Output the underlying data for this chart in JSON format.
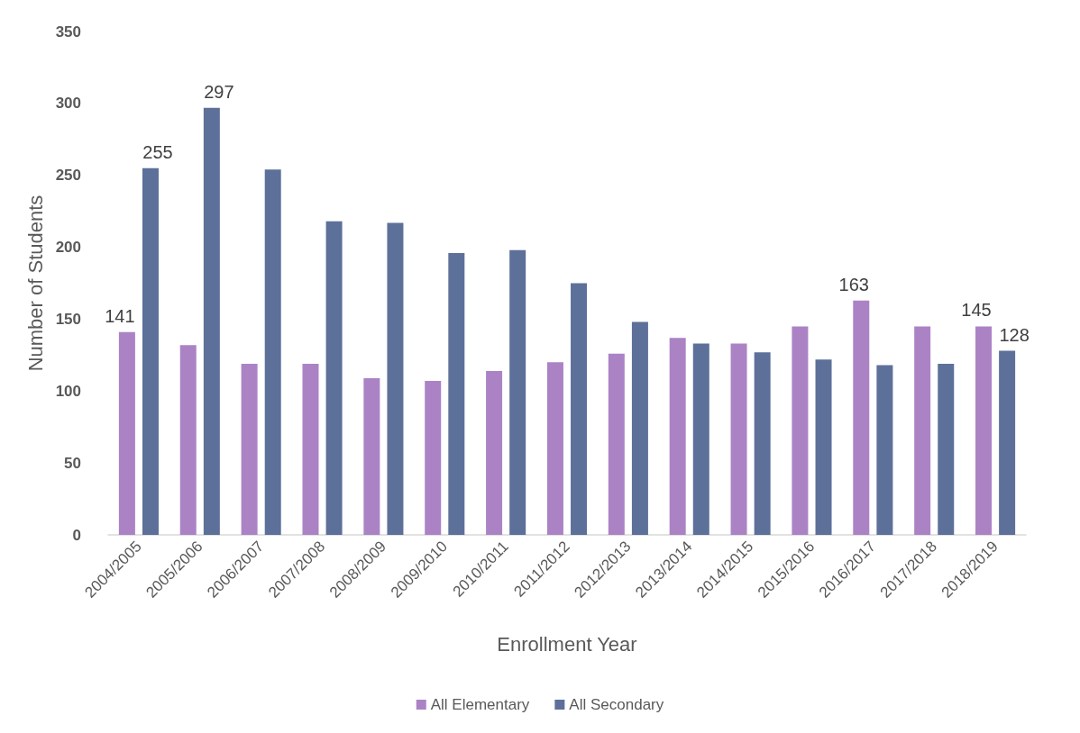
{
  "chart_data": {
    "type": "bar",
    "xlabel": "Enrollment Year",
    "ylabel": "Number of Students",
    "categories": [
      "2004/2005",
      "2005/2006",
      "2006/2007",
      "2007/2008",
      "2008/2009",
      "2009/2010",
      "2010/2011",
      "2011/2012",
      "2012/2013",
      "2013/2014",
      "2014/2015",
      "2015/2016",
      "2016/2017",
      "2017/2018",
      "2018/2019"
    ],
    "series": [
      {
        "name": "All Elementary",
        "color": "#ab83c5",
        "values": [
          141,
          132,
          119,
          119,
          109,
          107,
          114,
          120,
          126,
          137,
          133,
          145,
          163,
          145,
          145
        ],
        "value_labels": [
          "141",
          null,
          null,
          null,
          null,
          null,
          null,
          null,
          null,
          null,
          null,
          null,
          "163",
          null,
          "145"
        ]
      },
      {
        "name": "All Secondary",
        "color": "#5d7099",
        "values": [
          255,
          297,
          254,
          218,
          217,
          196,
          198,
          175,
          148,
          133,
          127,
          122,
          118,
          119,
          128
        ],
        "value_labels": [
          "255",
          "297",
          null,
          null,
          null,
          null,
          null,
          null,
          null,
          null,
          null,
          null,
          null,
          null,
          "128"
        ]
      }
    ],
    "ylim": [
      0,
      350
    ],
    "yticks": [
      0,
      50,
      100,
      150,
      200,
      250,
      300,
      350
    ],
    "grid": false,
    "legend": "bottom"
  }
}
